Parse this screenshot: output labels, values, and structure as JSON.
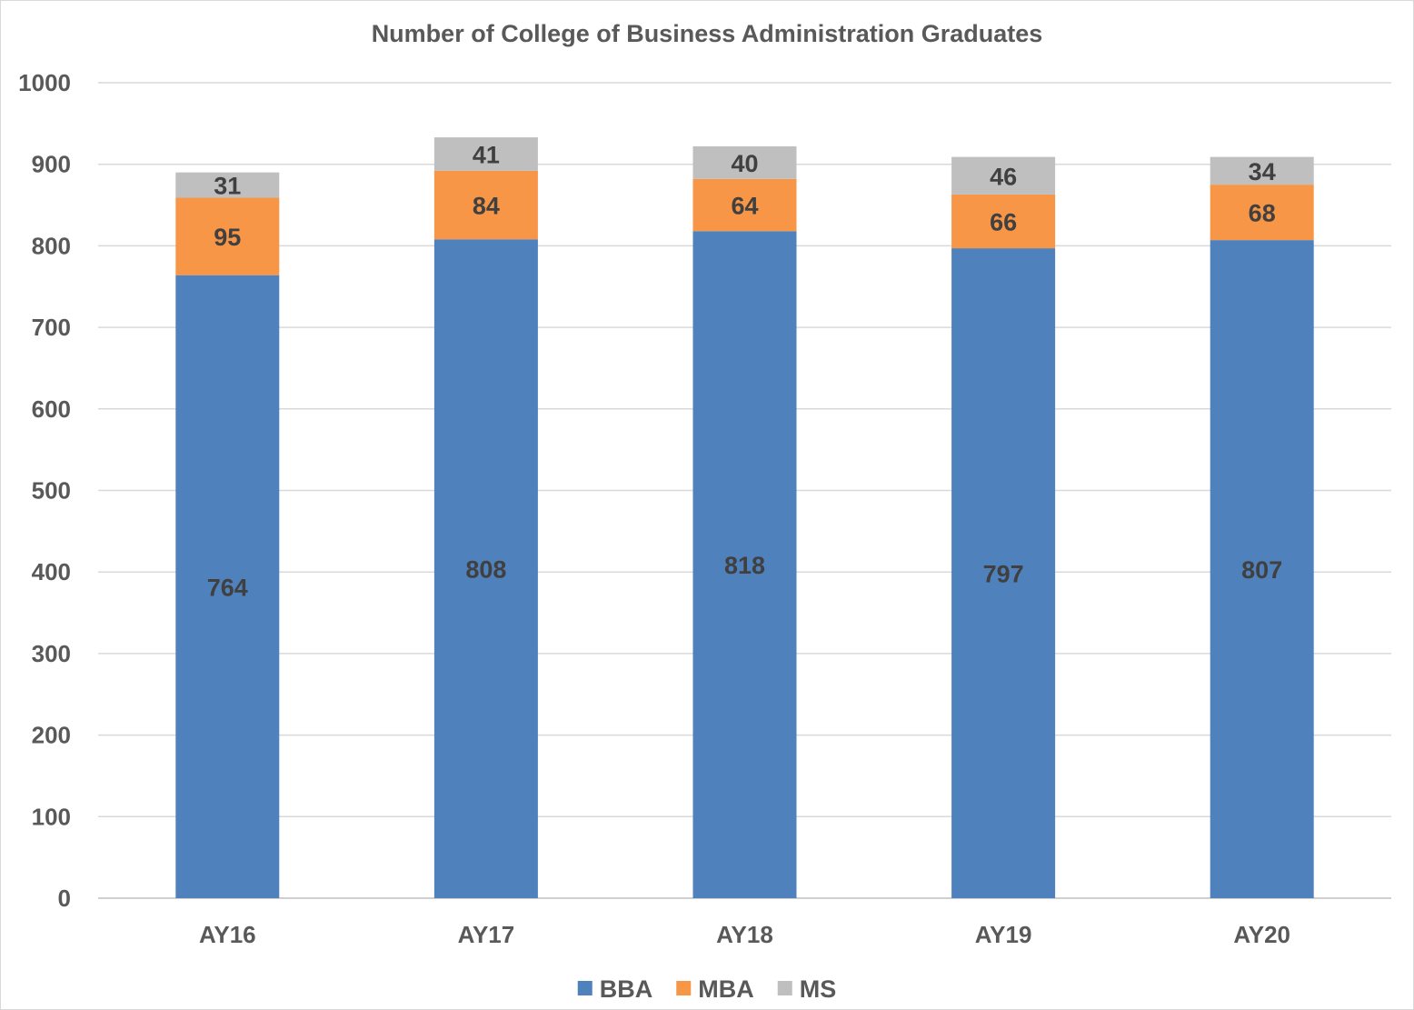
{
  "chart_data": {
    "type": "bar",
    "stacked": true,
    "title": "Number of College of Business Administration Graduates",
    "xlabel": "",
    "ylabel": "",
    "categories": [
      "AY16",
      "AY17",
      "AY18",
      "AY19",
      "AY20"
    ],
    "series": [
      {
        "name": "BBA",
        "color": "#4f81bd",
        "values": [
          764,
          808,
          818,
          797,
          807
        ]
      },
      {
        "name": "MBA",
        "color": "#f79646",
        "values": [
          95,
          84,
          64,
          66,
          68
        ]
      },
      {
        "name": "MS",
        "color": "#bfbfbf",
        "values": [
          31,
          41,
          40,
          46,
          34
        ]
      }
    ],
    "ylim": [
      0,
      1000
    ],
    "yticks": [
      0,
      100,
      200,
      300,
      400,
      500,
      600,
      700,
      800,
      900,
      1000
    ],
    "grid": true,
    "legend_position": "bottom",
    "data_labels": true
  }
}
